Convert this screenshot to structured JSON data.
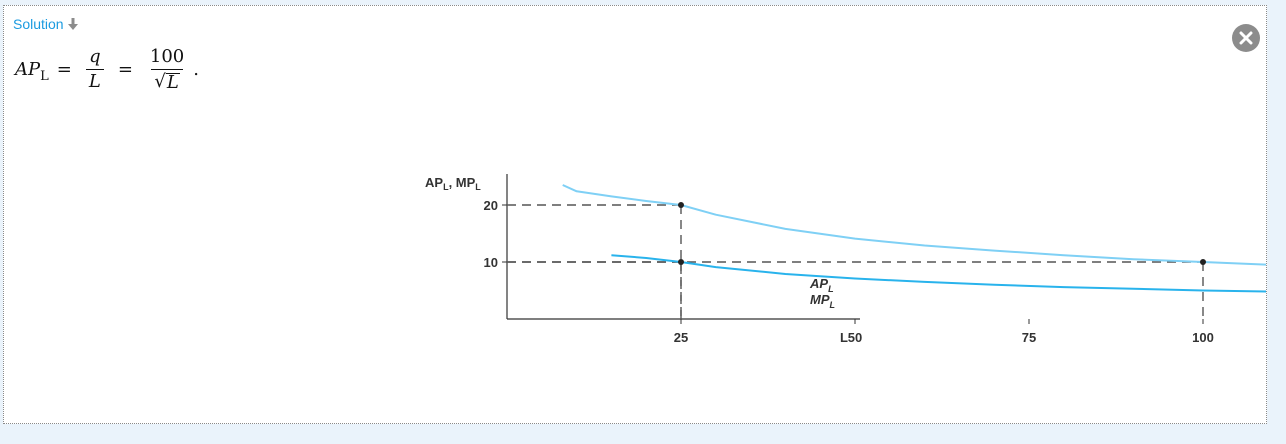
{
  "solution": {
    "label": "Solution"
  },
  "formula": {
    "lhs_main": "AP",
    "lhs_sub": "L",
    "equals": "=",
    "frac1_num": "q",
    "frac1_den": "L",
    "frac2_num": "100",
    "frac2_den_radical": "√",
    "frac2_den_var": "L",
    "period": "."
  },
  "chart_data": {
    "type": "line",
    "ylabel_main": "AP",
    "ylabel_sub1": "L",
    "ylabel_sep": ", MP",
    "ylabel_sub2": "L",
    "xlabel": "L",
    "xticks": [
      25,
      50,
      75,
      100
    ],
    "yticks": [
      10,
      20
    ],
    "xlim": [
      0,
      150
    ],
    "ylim": [
      0,
      28
    ],
    "series": [
      {
        "name_main": "AP",
        "name_sub": "L",
        "color": "#7fd0f5",
        "x": [
          8,
          10,
          15,
          20,
          25,
          30,
          40,
          50,
          60,
          70,
          80,
          90,
          100,
          110,
          120,
          130,
          140
        ],
        "y": [
          23.5,
          22.4,
          21.5,
          20.7,
          20,
          18.3,
          15.8,
          14.1,
          12.9,
          12.0,
          11.2,
          10.5,
          10.0,
          9.5,
          9.1,
          8.8,
          8.3
        ]
      },
      {
        "name_main": "MP",
        "name_sub": "L",
        "color": "#29b3ec",
        "x": [
          15,
          20,
          25,
          30,
          40,
          50,
          60,
          70,
          80,
          90,
          100,
          110,
          120,
          130,
          140
        ],
        "y": [
          11.2,
          10.7,
          10.0,
          9.1,
          7.9,
          7.1,
          6.5,
          6.0,
          5.6,
          5.3,
          5.0,
          4.8,
          4.6,
          4.5,
          4.5
        ]
      }
    ],
    "points": [
      {
        "x": 25,
        "y": 20
      },
      {
        "x": 25,
        "y": 10
      },
      {
        "x": 100,
        "y": 10
      }
    ],
    "grid": false
  }
}
